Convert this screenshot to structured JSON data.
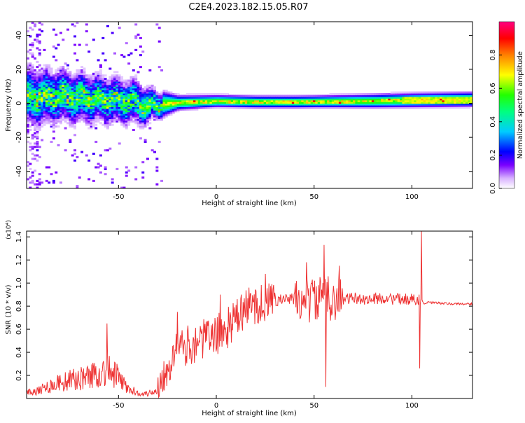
{
  "title": "C2E4.2023.182.15.05.R07",
  "chart_data": [
    {
      "type": "heatmap",
      "xlabel": "Height of straight line (km)",
      "ylabel": "Frequency (Hz)",
      "xlim": [
        -97,
        131
      ],
      "ylim": [
        -50,
        48
      ],
      "x_ticks": [
        -50,
        0,
        50,
        100
      ],
      "y_ticks": [
        -40,
        -20,
        0,
        20,
        40
      ],
      "x_tick_labels": [
        "-50",
        "0",
        "50",
        "100"
      ],
      "y_tick_labels": [
        "-40",
        "-20",
        "0",
        "20",
        "40"
      ],
      "colorbar": {
        "label": "Normalized spectral amplitude",
        "range": [
          0,
          1
        ],
        "ticks": [
          0.0,
          0.2,
          0.4,
          0.6,
          0.8
        ],
        "tick_labels": [
          "0.0",
          "0.2",
          "0.4",
          "0.6",
          "0.8"
        ],
        "colors": [
          "#ffffff",
          "#d9b3ff",
          "#6a00ff",
          "#0000ff",
          "#00ffff",
          "#00ff00",
          "#ffff00",
          "#ff8000",
          "#ff0000",
          "#ff0080"
        ]
      },
      "center_frequency": {
        "x": [
          -97,
          -80,
          -60,
          -45,
          -35,
          -30,
          -20,
          -10,
          0,
          20,
          40,
          60,
          80,
          100,
          131
        ],
        "y": [
          3,
          4,
          2,
          1,
          -2,
          -1,
          0,
          0.5,
          1,
          0.5,
          0.5,
          0.8,
          1,
          1.5,
          2
        ]
      },
      "spread_hz": {
        "x": [
          -97,
          -60,
          -40,
          -30,
          -20,
          0,
          50,
          100,
          131
        ],
        "y": [
          12,
          10,
          9,
          6,
          3,
          2.5,
          2.5,
          3,
          3
        ]
      }
    },
    {
      "type": "line",
      "xlabel": "Height of straight line (km)",
      "ylabel": "SNR (10 * v/v)",
      "y_multiplier": "(x10⁴)",
      "xlim": [
        -97,
        131
      ],
      "ylim": [
        0,
        1.45
      ],
      "x_ticks": [
        -50,
        0,
        50,
        100
      ],
      "y_ticks": [
        0.2,
        0.4,
        0.6,
        0.8,
        1.0,
        1.2,
        1.4
      ],
      "x_tick_labels": [
        "-50",
        "0",
        "50",
        "100"
      ],
      "y_tick_labels": [
        "0.2",
        "0.4",
        "0.6",
        "0.8",
        "1.0",
        "1.2",
        "1.4"
      ],
      "color": "#ee3333",
      "series": [
        {
          "name": "",
          "x": [
            -97,
            -90,
            -80,
            -70,
            -60,
            -55,
            -50,
            -45,
            -40,
            -35,
            -30,
            -25,
            -20,
            -15,
            -10,
            -5,
            0,
            5,
            10,
            15,
            20,
            25,
            30,
            35,
            40,
            45,
            50,
            55,
            60,
            65,
            70,
            75,
            80,
            85,
            90,
            95,
            100,
            103,
            105,
            106,
            108,
            110,
            120,
            131
          ],
          "y": [
            0.05,
            0.08,
            0.14,
            0.17,
            0.22,
            0.24,
            0.18,
            0.08,
            0.05,
            0.04,
            0.08,
            0.3,
            0.4,
            0.45,
            0.5,
            0.52,
            0.55,
            0.6,
            0.68,
            0.78,
            0.82,
            0.82,
            0.85,
            0.86,
            0.86,
            0.84,
            0.86,
            0.86,
            0.88,
            0.86,
            0.87,
            0.86,
            0.86,
            0.87,
            0.86,
            0.86,
            0.86,
            0.86,
            0.86,
            0.82,
            0.83,
            0.83,
            0.82,
            0.82
          ]
        }
      ],
      "spikes": [
        {
          "x": -56,
          "y": 0.65
        },
        {
          "x": -20,
          "y": 0.75
        },
        {
          "x": 2,
          "y": 0.9
        },
        {
          "x": 25,
          "y": 1.08
        },
        {
          "x": 46,
          "y": 1.18
        },
        {
          "x": 55,
          "y": 1.33
        },
        {
          "x": 56,
          "y": 0.1
        },
        {
          "x": 63,
          "y": 1.15
        },
        {
          "x": 104,
          "y": 0.26
        },
        {
          "x": 105,
          "y": 1.45
        }
      ]
    }
  ]
}
